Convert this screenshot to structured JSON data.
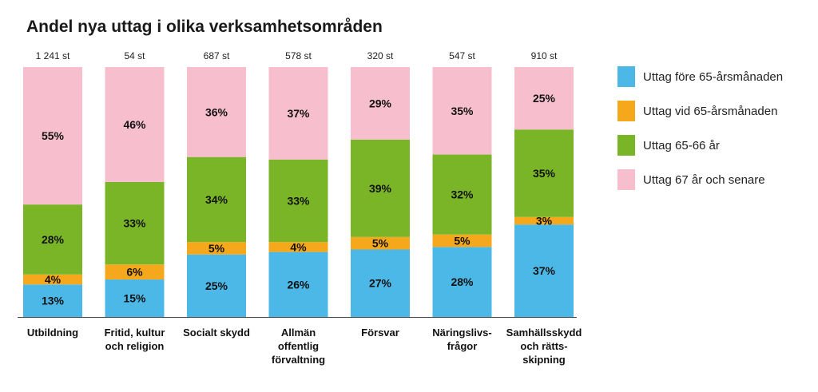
{
  "title": "Andel nya uttag i olika verksamhetsområden",
  "chart_data": {
    "type": "bar",
    "stacked": true,
    "categories": [
      [
        "Utbildning"
      ],
      [
        "Fritid, kultur",
        "och religion"
      ],
      [
        "Socialt skydd"
      ],
      [
        "Allmän",
        "offentlig",
        "förvaltning"
      ],
      [
        "Försvar"
      ],
      [
        "Näringslivs-",
        "frågor"
      ],
      [
        "Samhällsskydd",
        "och rätts-",
        "skipning"
      ]
    ],
    "totals": [
      "1 241 st",
      "54 st",
      "687 st",
      "578 st",
      "320 st",
      "547 st",
      "910 st"
    ],
    "series": [
      {
        "name": "Uttag före 65-årsmånaden",
        "color": "#4cb8e8",
        "values": [
          13,
          15,
          25,
          26,
          27,
          28,
          37
        ]
      },
      {
        "name": "Uttag vid 65-årsmånaden",
        "color": "#f5a81c",
        "values": [
          4,
          6,
          5,
          4,
          5,
          5,
          3
        ]
      },
      {
        "name": "Uttag 65-66 år",
        "color": "#7ab527",
        "values": [
          28,
          33,
          34,
          33,
          39,
          32,
          35
        ]
      },
      {
        "name": "Uttag 67 år och senare",
        "color": "#f7bfcd",
        "values": [
          55,
          46,
          36,
          37,
          29,
          35,
          25
        ]
      }
    ],
    "value_suffix": "%",
    "ylim": [
      0,
      100
    ],
    "grid": false,
    "legend_position": "right"
  }
}
